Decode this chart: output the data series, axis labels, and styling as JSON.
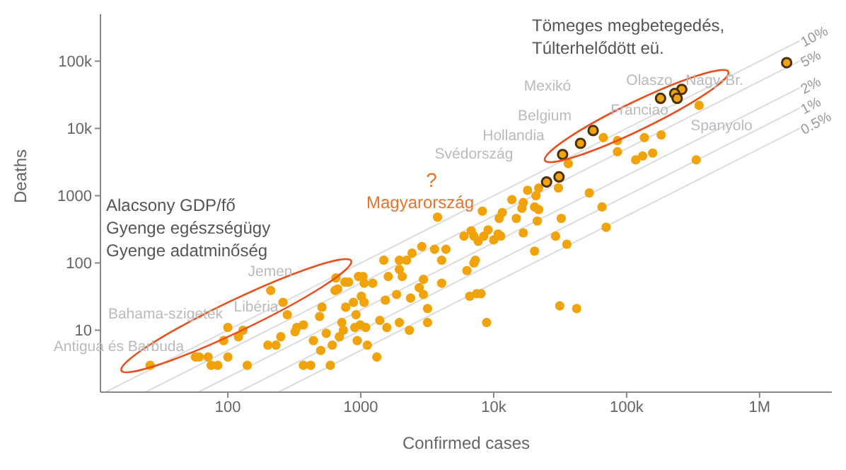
{
  "chart_data": {
    "type": "scatter",
    "xlabel": "Confirmed cases",
    "ylabel": "Deaths",
    "log": "xy",
    "xlim": [
      11,
      3500000
    ],
    "ylim": [
      1.2,
      500000
    ],
    "xticks": [
      100,
      1000,
      {
        "value": 10000,
        "label": "10k"
      },
      {
        "value": 100000,
        "label": "100k"
      },
      {
        "value": 1000000,
        "label": "1M"
      }
    ],
    "yticks": [
      10,
      100,
      1000,
      {
        "value": 10000,
        "label": "10k"
      },
      {
        "value": 100000,
        "label": "100k"
      }
    ],
    "series": [
      {
        "name": "10%",
        "type": "line",
        "color": "#dcdcdc",
        "x": [
          12,
          2000000
        ],
        "values": [
          1.2,
          200000
        ]
      },
      {
        "name": "5%",
        "type": "line",
        "color": "#dcdcdc",
        "x": [
          24,
          2000000
        ],
        "values": [
          1.2,
          100000
        ]
      },
      {
        "name": "2%",
        "type": "line",
        "color": "#dcdcdc",
        "x": [
          60,
          2000000
        ],
        "values": [
          1.2,
          40000
        ]
      },
      {
        "name": "1%",
        "type": "line",
        "color": "#dcdcdc",
        "x": [
          120,
          2000000
        ],
        "values": [
          1.2,
          20000
        ]
      },
      {
        "name": "0.5%",
        "type": "line",
        "color": "#dcdcdc",
        "x": [
          240,
          2000000
        ],
        "values": [
          1.2,
          10000
        ]
      },
      {
        "color": "#f0a30a",
        "x": [
          26,
          57,
          61,
          71,
          75,
          84,
          100,
          93,
          100,
          120,
          130,
          140,
          210,
          260,
          280,
          200,
          230,
          250,
          320,
          330,
          370,
          370,
          420,
          440,
          500,
          490,
          510,
          550,
          610,
          590,
          640,
          650,
          670,
          690,
          720,
          740,
          760,
          810,
          770,
          880,
          900,
          920,
          940,
          960,
          1040,
          1010,
          990,
          1060,
          1060,
          1090,
          1120,
          1230,
          1320,
          1390,
          1490,
          1530,
          1570,
          1610,
          1860,
          1950,
          1950,
          1950,
          2050,
          2210,
          2320,
          2370,
          2430,
          2750,
          2880,
          2960,
          2960,
          3180,
          3180,
          3590,
          4060,
          4060,
          4370,
          5980,
          6290,
          6600,
          7100,
          7280,
          7100,
          7640,
          7460,
          8030,
          8430,
          8850,
          10000,
          10800,
          11300,
          16700,
          20300,
          29200,
          31400,
          35500,
          42100,
          70100,
          351000,
          36400,
          66800,
          85300,
          85300,
          136000,
          182000,
          117000,
          132000,
          157000,
          334000,
          30700,
          21800,
          18000,
          20800,
          52400,
          13700,
          16700,
          16300,
          20300,
          21800,
          8220,
          11600,
          11000,
          14800,
          21300,
          32200,
          65300,
          3780,
          6780,
          9080
        ],
        "values": [
          3,
          4,
          4,
          4,
          3,
          3,
          4,
          7,
          11,
          8,
          10,
          3,
          39,
          26,
          17,
          6,
          6,
          8,
          9.5,
          11,
          12,
          3,
          3,
          7,
          5,
          16,
          22,
          9,
          6,
          3,
          39,
          60,
          41,
          8,
          13,
          10,
          52,
          52,
          22,
          26,
          11,
          17,
          7,
          63,
          63,
          32,
          12,
          50,
          26,
          11,
          6,
          50,
          4,
          14,
          110,
          28,
          11,
          63,
          34,
          110,
          80,
          13,
          63,
          110,
          10,
          30,
          140,
          43,
          175,
          57,
          34,
          21,
          13,
          160,
          110,
          50,
          160,
          250,
          77,
          32,
          100,
          110,
          250,
          210,
          35,
          35,
          250,
          13,
          220,
          270,
          250,
          280,
          150,
          250,
          23,
          190,
          21,
          340,
          22000,
          3000,
          7300,
          6600,
          4500,
          7300,
          8000,
          3400,
          3900,
          4300,
          3400,
          1300,
          1300,
          1200,
          1000,
          1100,
          870,
          790,
          650,
          680,
          620,
          590,
          560,
          460,
          460,
          420,
          460,
          680,
          480,
          300,
          310
        ]
      },
      {
        "color": "#f0a30a",
        "x": [
          1600000,
          260000,
          230000,
          240000,
          180000,
          56000,
          45000,
          33000,
          31000,
          25000
        ],
        "values": [
          95000,
          38000,
          33000,
          28000,
          28000,
          9300,
          6000,
          4100,
          1900,
          1600
        ]
      }
    ],
    "annotations": [
      "Tömeges megbetegedés,\nTúlterhelődött eü.",
      "Alacsony GDP/fő\nGyenge egészségügy\nGyenge adatminőség",
      "?",
      "Magyarország",
      "Antigua és Barbuda",
      "Bahama-szigetek",
      "Libéria",
      "Jemen",
      "Svédország",
      "Hollandia",
      "Belgium",
      "Mexikó",
      "Franciao",
      "Olaszo",
      "Nagy-Br.",
      "Spanyolo"
    ]
  }
}
